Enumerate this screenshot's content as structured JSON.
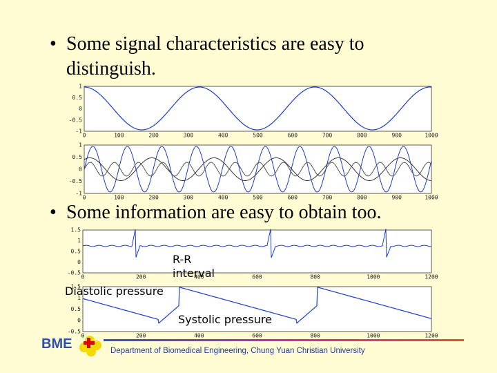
{
  "bullets": [
    "Some signal characteristics are easy to distinguish.",
    "Some information are easy to obtain too."
  ],
  "plot_top": {
    "xticks": [
      "0",
      "100",
      "200",
      "300",
      "400",
      "500",
      "600",
      "700",
      "800",
      "900",
      "1000"
    ],
    "yticks": [
      "1",
      "0.5",
      "0",
      "-0.5",
      "-1"
    ]
  },
  "plot_mid": {
    "xticks": [
      "0",
      "100",
      "200",
      "300",
      "400",
      "500",
      "600",
      "700",
      "800",
      "900",
      "1000"
    ],
    "yticks": [
      "1",
      "0.5",
      "0",
      "-0.5",
      "-1"
    ]
  },
  "plot_ecg": {
    "xticks": [
      "0",
      "200",
      "400",
      "600",
      "800",
      "1000",
      "1200"
    ],
    "yticks": [
      "1.5",
      "1",
      "0.5",
      "0",
      "-0.5"
    ]
  },
  "plot_bp": {
    "xticks": [
      "0",
      "200",
      "400",
      "600",
      "800",
      "1000",
      "1200"
    ],
    "yticks": [
      "1.5",
      "1",
      "0.5",
      "0",
      "-0.5"
    ]
  },
  "annotations": {
    "rr": "R-R interval",
    "diastolic": "Diastolic pressure",
    "systolic": "Systolic pressure"
  },
  "footer": {
    "logo": "BME",
    "department": "Department of Biomedical Engineering, Chung Yuan Christian University"
  }
}
